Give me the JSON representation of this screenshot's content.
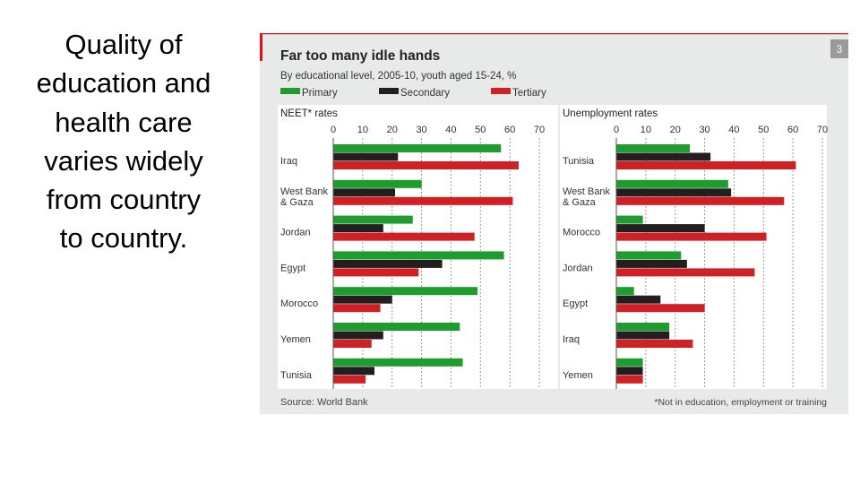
{
  "slide": {
    "text": "Quality of education and health care varies widely from country to country."
  },
  "figure": {
    "title": "Far too many idle hands",
    "subtitle": "By educational level, 2005-10, youth aged 15-24, %",
    "badge": "3",
    "source": "Source: World Bank",
    "footnote": "*Not in education, employment or training",
    "legend": [
      {
        "name": "Primary",
        "color": "#1e9c2e"
      },
      {
        "name": "Secondary",
        "color": "#231f20"
      },
      {
        "name": "Tertiary",
        "color": "#cf2026"
      }
    ],
    "accent_color": "#e0101a"
  },
  "chart_data": [
    {
      "type": "bar",
      "orientation": "horizontal",
      "title": "NEET* rates",
      "xlim": [
        0,
        70
      ],
      "ticks": [
        0,
        10,
        20,
        30,
        40,
        50,
        60,
        70
      ],
      "grid": true,
      "categories": [
        "Iraq",
        "West Bank & Gaza",
        "Jordan",
        "Egypt",
        "Morocco",
        "Yemen",
        "Tunisia"
      ],
      "series": [
        {
          "name": "Primary",
          "values": [
            57,
            30,
            27,
            58,
            49,
            43,
            44
          ]
        },
        {
          "name": "Secondary",
          "values": [
            22,
            21,
            17,
            37,
            20,
            17,
            14
          ]
        },
        {
          "name": "Tertiary",
          "values": [
            63,
            61,
            48,
            29,
            16,
            13,
            11
          ]
        }
      ]
    },
    {
      "type": "bar",
      "orientation": "horizontal",
      "title": "Unemployment rates",
      "xlim": [
        0,
        70
      ],
      "ticks": [
        0,
        10,
        20,
        30,
        40,
        50,
        60,
        70
      ],
      "grid": true,
      "categories": [
        "Tunisia",
        "West Bank & Gaza",
        "Morocco",
        "Jordan",
        "Egypt",
        "Iraq",
        "Yemen"
      ],
      "series": [
        {
          "name": "Primary",
          "values": [
            25,
            38,
            9,
            22,
            6,
            18,
            9
          ]
        },
        {
          "name": "Secondary",
          "values": [
            32,
            39,
            30,
            24,
            15,
            18,
            9
          ]
        },
        {
          "name": "Tertiary",
          "values": [
            61,
            57,
            51,
            47,
            30,
            26,
            9
          ]
        }
      ]
    }
  ]
}
